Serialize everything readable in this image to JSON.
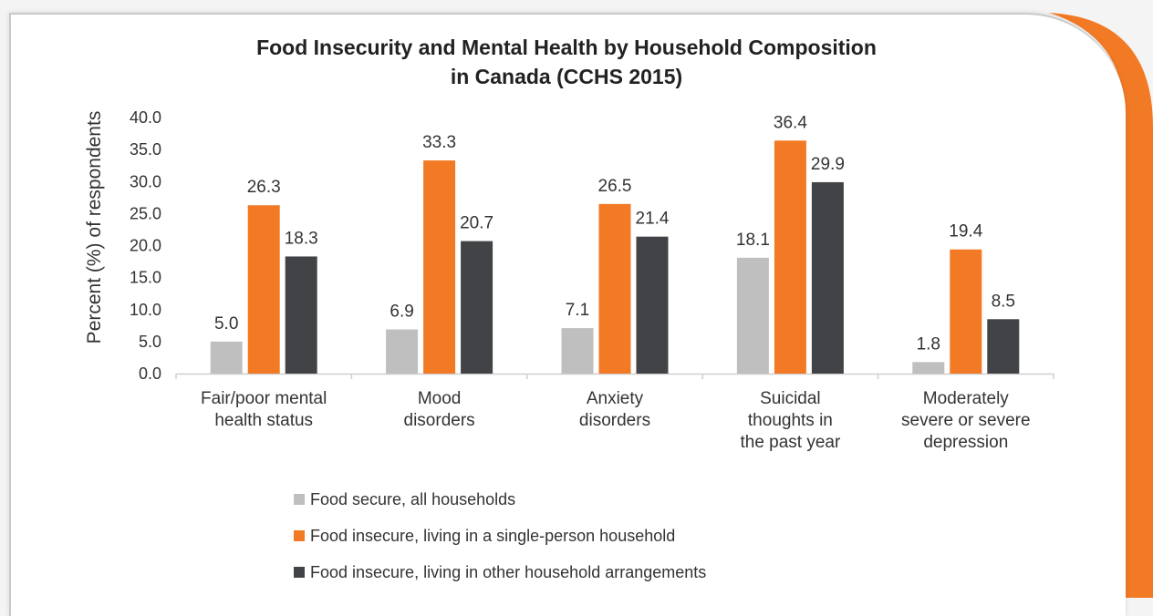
{
  "chart_data": {
    "type": "bar",
    "title": "Food Insecurity and Mental Health  by Household Composition in Canada (CCHS 2015)",
    "title_lines": [
      "Food Insecurity and Mental Health  by Household Composition",
      "in Canada (CCHS 2015)"
    ],
    "ylabel": "Percent (%) of respondents",
    "xlabel": "",
    "ylim": [
      0,
      40
    ],
    "yticks": [
      "0.0",
      "5.0",
      "10.0",
      "15.0",
      "20.0",
      "25.0",
      "30.0",
      "35.0",
      "40.0"
    ],
    "grid": false,
    "legend_position": "bottom",
    "categories": [
      [
        "Fair/poor mental",
        "health status"
      ],
      [
        "Mood",
        "disorders"
      ],
      [
        "Anxiety",
        "disorders"
      ],
      [
        "Suicidal",
        "thoughts in",
        "the past year"
      ],
      [
        "Moderately",
        "severe or severe",
        "depression"
      ]
    ],
    "series": [
      {
        "name": "Food secure, all households",
        "color": "#bfbfbf",
        "values": [
          5.0,
          6.9,
          7.1,
          18.1,
          1.8
        ]
      },
      {
        "name": "Food insecure, living in a single-person household",
        "color": "#f37a25",
        "values": [
          26.3,
          33.3,
          26.5,
          36.4,
          19.4
        ]
      },
      {
        "name": "Food insecure, living in other household arrangements",
        "color": "#424346",
        "values": [
          18.3,
          20.7,
          21.4,
          29.9,
          8.5
        ]
      }
    ]
  }
}
